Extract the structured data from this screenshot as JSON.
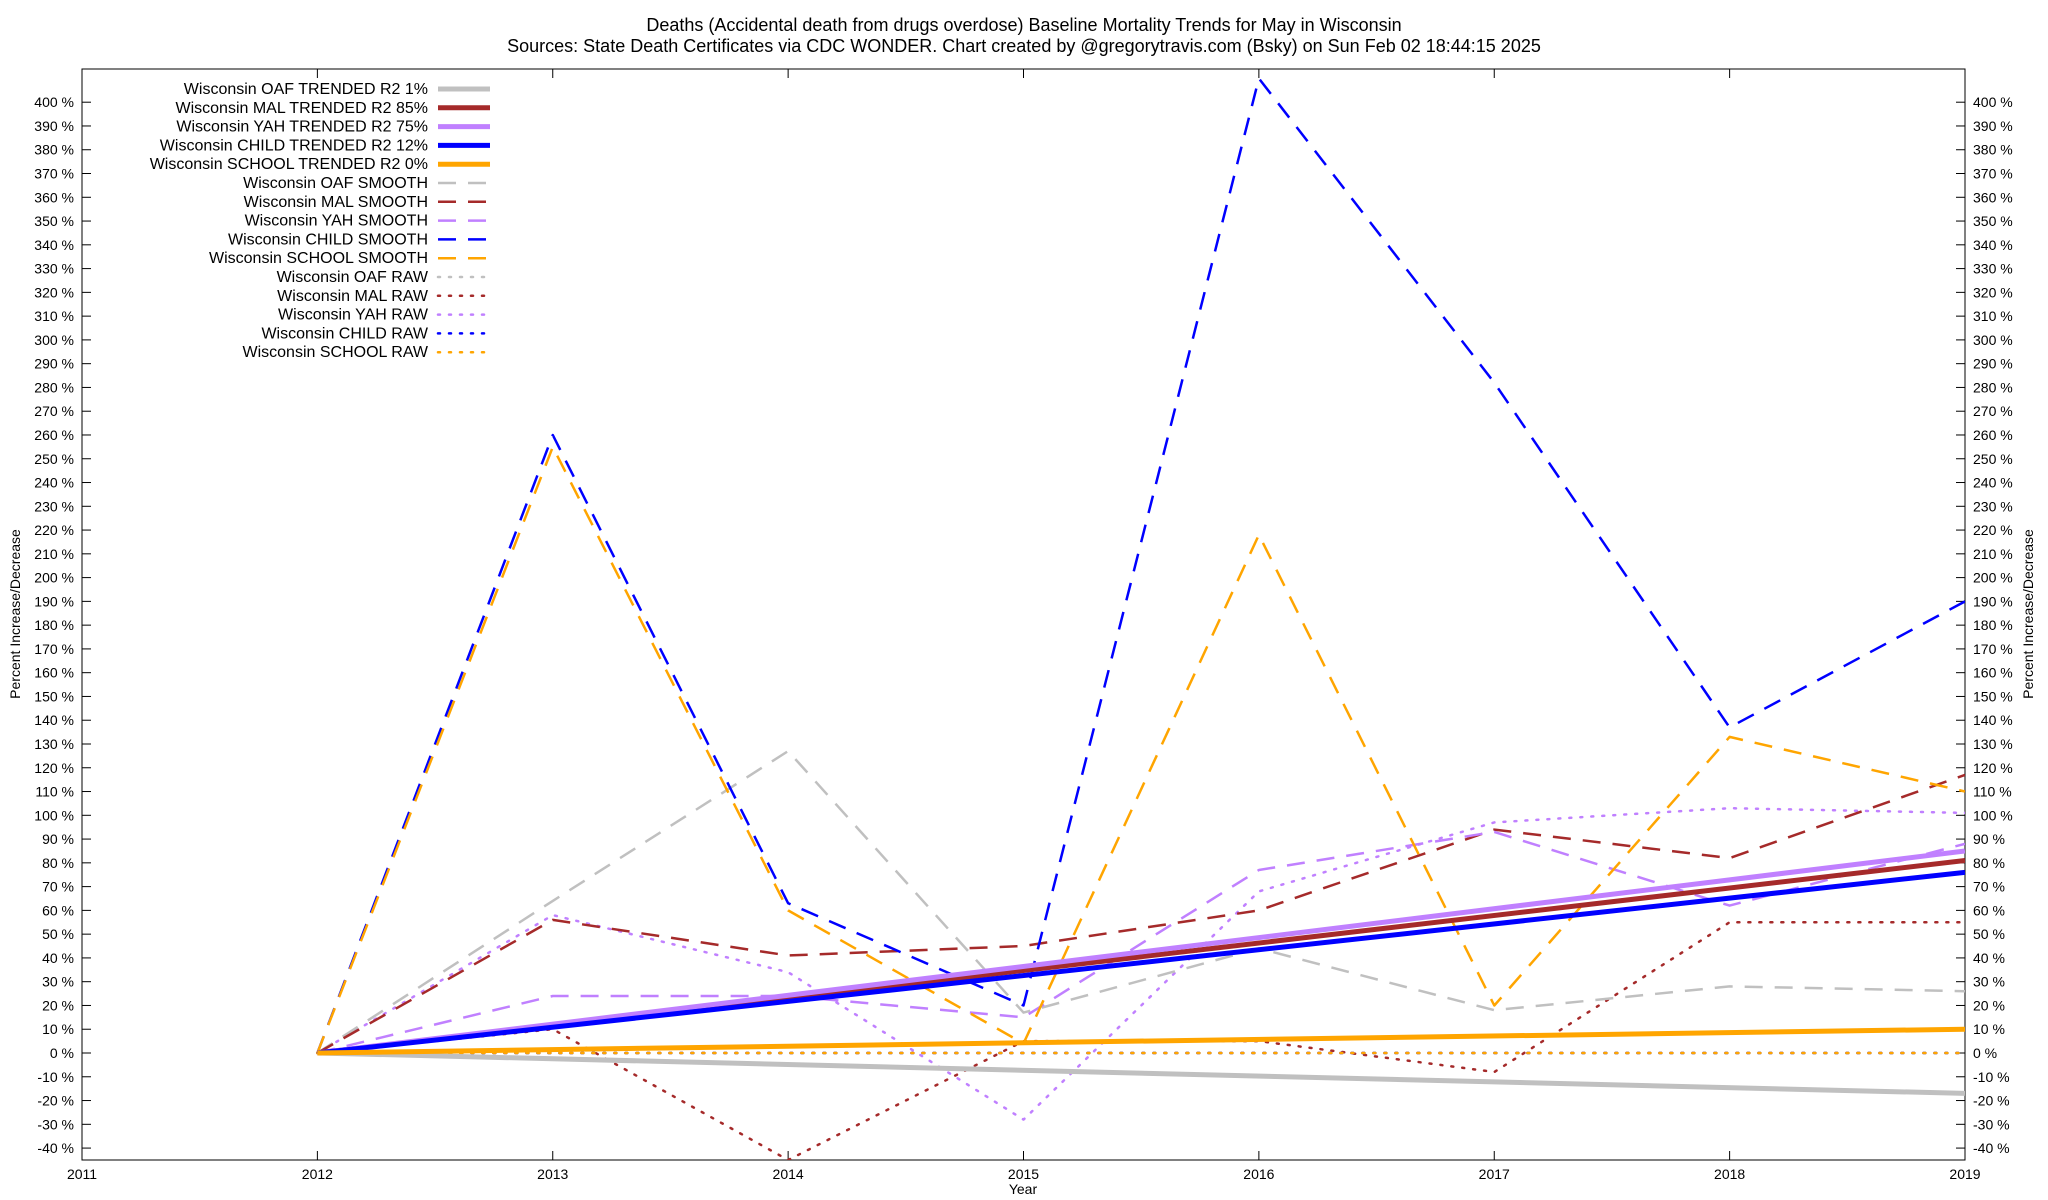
{
  "chart_data": {
    "type": "line",
    "title_line1": "Deaths (Accidental death from drugs overdose)  Baseline Mortality Trends for May in Wisconsin",
    "title_line2": "Sources: State Death Certificates via CDC WONDER.              Chart created by @gregorytravis.com (Bsky) on Sun Feb 02 18:44:15 2025",
    "xlabel": "Year",
    "ylabel": "Percent Increase/Decrease",
    "ylabel_right": "Percent Increase/Decrease",
    "xlim": [
      2011,
      2019
    ],
    "ylim": [
      -45,
      410
    ],
    "x_ticks": [
      2011,
      2012,
      2013,
      2014,
      2015,
      2016,
      2017,
      2018,
      2019
    ],
    "x_tick_labels": [
      "2011",
      "2012",
      "2013",
      "2014",
      "2015",
      "2016",
      "2017",
      "2018",
      "2019"
    ],
    "y_ticks": [
      -40,
      -30,
      -20,
      -10,
      0,
      10,
      20,
      30,
      40,
      50,
      60,
      70,
      80,
      90,
      100,
      110,
      120,
      130,
      140,
      150,
      160,
      170,
      180,
      190,
      200,
      210,
      220,
      230,
      240,
      250,
      260,
      270,
      280,
      290,
      300,
      310,
      320,
      330,
      340,
      350,
      360,
      370,
      380,
      390,
      400
    ],
    "y_tick_labels": [
      "-40 %",
      "-30 %",
      "-20 %",
      "-10 %",
      "0 %",
      "10 %",
      "20 %",
      "30 %",
      "40 %",
      "50 %",
      "60 %",
      "70 %",
      "80 %",
      "90 %",
      "100 %",
      "110 %",
      "120 %",
      "130 %",
      "140 %",
      "150 %",
      "160 %",
      "170 %",
      "180 %",
      "190 %",
      "200 %",
      "210 %",
      "220 %",
      "230 %",
      "240 %",
      "250 %",
      "260 %",
      "270 %",
      "280 %",
      "290 %",
      "300 %",
      "310 %",
      "320 %",
      "330 %",
      "340 %",
      "350 %",
      "360 %",
      "370 %",
      "380 %",
      "390 %",
      "400 %"
    ],
    "legend_position": "top-left",
    "x": [
      2012,
      2013,
      2014,
      2015,
      2016,
      2017,
      2018,
      2019
    ],
    "series": [
      {
        "name": "Wisconsin OAF TRENDED R2",
        "r2": "1%",
        "style": "trend",
        "color": "#c0c0c0",
        "x": [
          2012,
          2019
        ],
        "values": [
          0,
          -17
        ]
      },
      {
        "name": "Wisconsin MAL TRENDED R2",
        "r2": "85%",
        "style": "trend",
        "color": "#a52a2a",
        "x": [
          2012,
          2019
        ],
        "values": [
          0,
          81
        ]
      },
      {
        "name": "Wisconsin YAH TRENDED R2",
        "r2": "75%",
        "style": "trend",
        "color": "#c080ff",
        "x": [
          2012,
          2019
        ],
        "values": [
          0,
          85
        ]
      },
      {
        "name": "Wisconsin CHILD TRENDED R2",
        "r2": "12%",
        "style": "trend",
        "color": "#0000ff",
        "x": [
          2012,
          2019
        ],
        "values": [
          0,
          76
        ]
      },
      {
        "name": "Wisconsin SCHOOL TRENDED R2",
        "r2": "0%",
        "style": "trend",
        "color": "#ffa500",
        "x": [
          2012,
          2019
        ],
        "values": [
          0,
          10
        ]
      },
      {
        "name": "Wisconsin OAF SMOOTH",
        "style": "smooth",
        "color": "#c0c0c0",
        "values": [
          0,
          64,
          127,
          17,
          44,
          18,
          28,
          26
        ]
      },
      {
        "name": "Wisconsin MAL SMOOTH",
        "style": "smooth",
        "color": "#a52a2a",
        "values": [
          0,
          56,
          41,
          45,
          60,
          94,
          82,
          117
        ]
      },
      {
        "name": "Wisconsin YAH SMOOTH",
        "style": "smooth",
        "color": "#c080ff",
        "values": [
          0,
          24,
          24,
          15,
          77,
          93,
          62,
          88
        ]
      },
      {
        "name": "Wisconsin CHILD SMOOTH",
        "style": "smooth",
        "color": "#0000ff",
        "values": [
          0,
          260,
          63,
          20,
          410,
          282,
          137,
          190
        ]
      },
      {
        "name": "Wisconsin SCHOOL SMOOTH",
        "style": "smooth",
        "color": "#ffa500",
        "values": [
          0,
          255,
          60,
          4,
          218,
          20,
          133,
          110
        ]
      },
      {
        "name": "Wisconsin OAF RAW",
        "style": "raw",
        "color": "#c0c0c0",
        "values": [
          0,
          0,
          0,
          0,
          0,
          0,
          0,
          0
        ]
      },
      {
        "name": "Wisconsin MAL RAW",
        "style": "raw",
        "color": "#a52a2a",
        "values": [
          0,
          10,
          -45,
          5,
          5,
          -8,
          55,
          55
        ]
      },
      {
        "name": "Wisconsin YAH RAW",
        "style": "raw",
        "color": "#c080ff",
        "values": [
          0,
          58,
          34,
          -28,
          68,
          97,
          103,
          101
        ]
      },
      {
        "name": "Wisconsin CHILD RAW",
        "style": "raw",
        "color": "#0000ff",
        "values": [
          0,
          0,
          0,
          0,
          0,
          0,
          0,
          0
        ]
      },
      {
        "name": "Wisconsin SCHOOL RAW",
        "style": "raw",
        "color": "#ffa500",
        "values": [
          0,
          0,
          0,
          0,
          0,
          0,
          0,
          0
        ]
      }
    ]
  }
}
